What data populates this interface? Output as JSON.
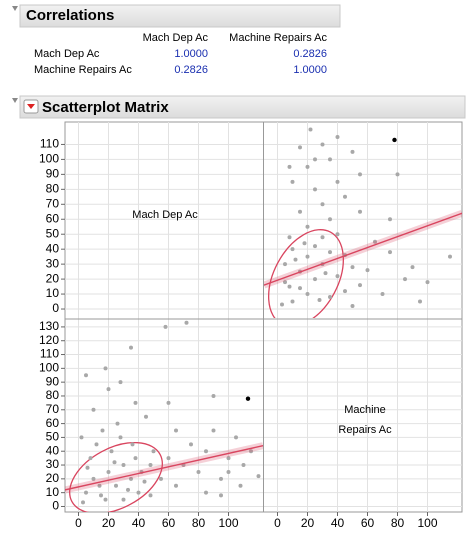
{
  "correlations": {
    "title": "Correlations",
    "columns": [
      "Mach Dep Ac",
      "Machine Repairs Ac"
    ],
    "rows": [
      {
        "label": "Mach Dep Ac",
        "values": [
          "1.0000",
          "0.2826"
        ]
      },
      {
        "label": "Machine Repairs Ac",
        "values": [
          "0.2826",
          "1.0000"
        ]
      }
    ]
  },
  "scatterplot_matrix": {
    "title": "Scatterplot Matrix",
    "variables": [
      "Mach Dep Ac",
      "Machine Repairs Ac"
    ],
    "point_color": "#a8a8a8",
    "fit_color": "#d9455f",
    "x_axis": {
      "lim": [
        -9,
        123
      ],
      "ticks": [
        0,
        20,
        40,
        60,
        80,
        100
      ]
    },
    "y_axes": [
      {
        "lim": [
          -6,
          125
        ],
        "ticks": [
          0,
          10,
          20,
          30,
          40,
          50,
          60,
          70,
          80,
          90,
          100,
          110
        ]
      },
      {
        "lim": [
          -4,
          135
        ],
        "ticks": [
          0,
          10,
          20,
          30,
          40,
          50,
          60,
          70,
          80,
          90,
          100,
          110,
          120,
          130
        ]
      }
    ],
    "points": {
      "mach_dep": [
        5,
        10,
        15,
        20,
        25,
        30,
        35,
        40,
        8,
        12,
        18,
        22,
        28,
        33,
        38,
        42,
        3,
        6,
        14,
        24,
        30,
        36,
        44,
        48,
        16,
        26,
        10,
        20,
        5,
        50,
        55,
        60,
        65,
        70,
        75,
        80,
        85,
        95,
        100,
        110,
        120,
        45,
        60,
        90,
        72,
        58,
        35,
        90,
        2,
        48,
        38,
        65,
        18,
        85,
        105,
        28,
        115,
        108,
        100,
        95
      ],
      "repairs": [
        10,
        20,
        8,
        25,
        15,
        30,
        20,
        10,
        35,
        45,
        5,
        40,
        50,
        12,
        35,
        25,
        3,
        28,
        15,
        32,
        5,
        45,
        18,
        30,
        55,
        60,
        70,
        85,
        95,
        40,
        20,
        35,
        15,
        30,
        45,
        25,
        40,
        20,
        35,
        30,
        22,
        65,
        75,
        80,
        133,
        130,
        115,
        55,
        50,
        8,
        75,
        55,
        100,
        10,
        50,
        90,
        40,
        15,
        25,
        8
      ]
    },
    "highlight": {
      "mach_dep": 113,
      "repairs": 78,
      "color": "#000000"
    },
    "fit_lines": [
      {
        "x": [
          -9,
          123
        ],
        "y": [
          16,
          64
        ]
      },
      {
        "x": [
          -9,
          123
        ],
        "y": [
          12,
          44
        ]
      }
    ]
  }
}
